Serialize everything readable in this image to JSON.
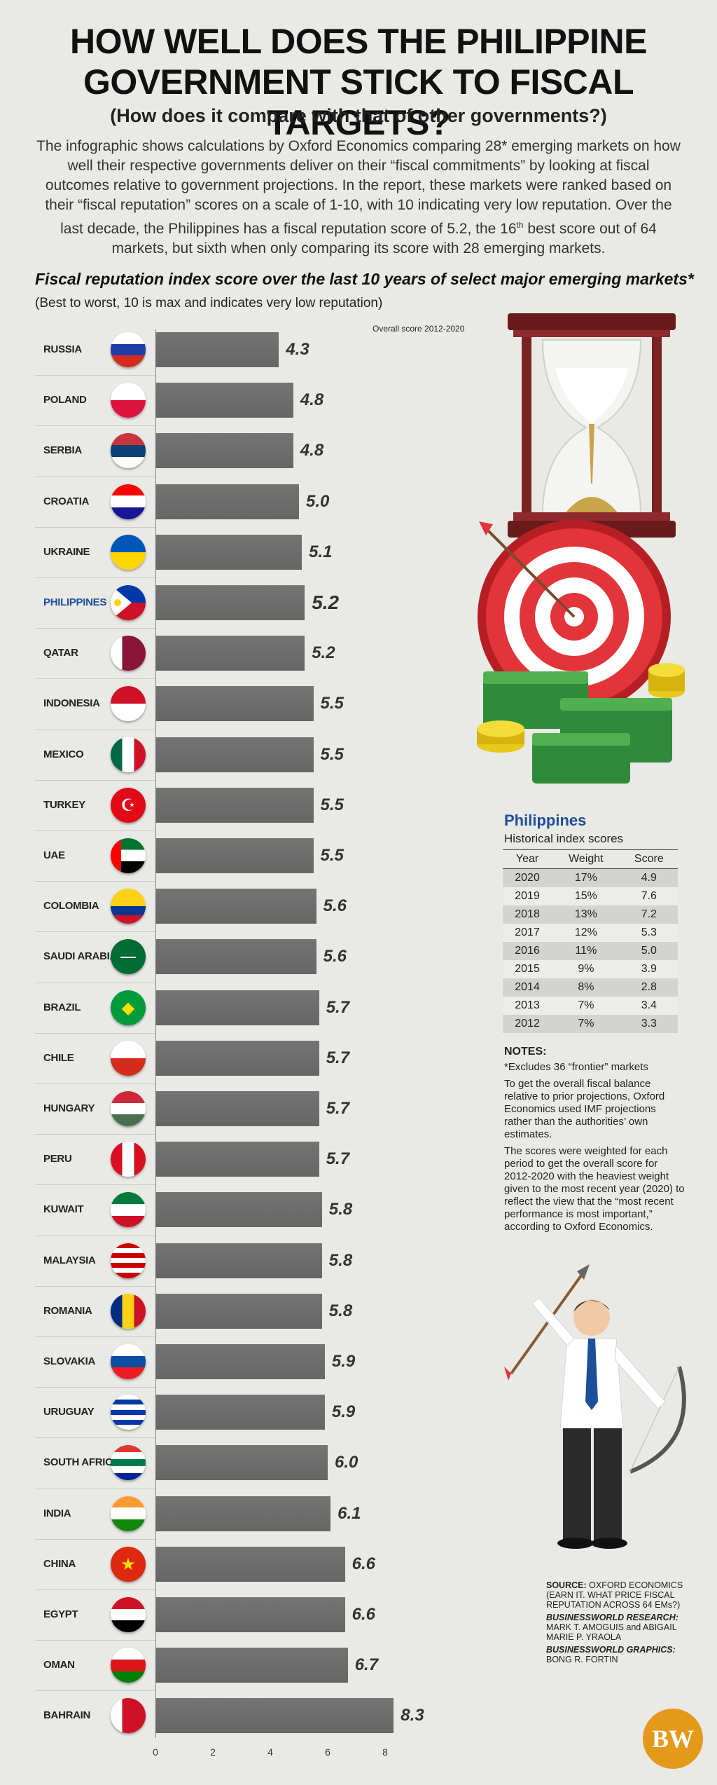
{
  "title_line1": "HOW WELL DOES THE PHILIPPINE",
  "title_line2": "GOVERNMENT STICK TO FISCAL TARGETS?",
  "subtitle": "(How does it compare with that of other governments?)",
  "intro_p1": "The infographic shows calculations by Oxford Economics comparing 28* emerging markets on how well their respective governments deliver on their “fiscal commitments” by looking at fiscal outcomes relative to government projections. In the report, these markets were ranked based on their “fiscal reputation” scores on a scale of 1-10, with 10 indicating very low reputation.",
  "intro_p2a": "Over the last decade, the Philippines has a fiscal reputation score of 5.2, the 16",
  "intro_sup": "th",
  "intro_p2b": " best score out of 64 markets, but sixth when only comparing its score with 28 emerging markets.",
  "chart_data": {
    "type": "bar",
    "orientation": "horizontal",
    "title": "Fiscal reputation index score over the last 10 years of select major emerging markets*",
    "subtitle": "(Best to worst, 10 is max and indicates very low reputation)",
    "value_header": "Overall score 2012-2020",
    "highlight": "PHILIPPINES",
    "categories": [
      "RUSSIA",
      "POLAND",
      "SERBIA",
      "CROATIA",
      "UKRAINE",
      "PHILIPPINES",
      "QATAR",
      "INDONESIA",
      "MEXICO",
      "TURKEY",
      "UAE",
      "COLOMBIA",
      "SAUDI ARABIA",
      "BRAZIL",
      "CHILE",
      "HUNGARY",
      "PERU",
      "KUWAIT",
      "MALAYSIA",
      "ROMANIA",
      "SLOVAKIA",
      "URUGUAY",
      "SOUTH AFRICA",
      "INDIA",
      "CHINA",
      "EGYPT",
      "OMAN",
      "BAHRAIN"
    ],
    "values": [
      4.3,
      4.8,
      4.8,
      5.0,
      5.1,
      5.2,
      5.2,
      5.5,
      5.5,
      5.5,
      5.5,
      5.6,
      5.6,
      5.7,
      5.7,
      5.7,
      5.7,
      5.8,
      5.8,
      5.8,
      5.9,
      5.9,
      6.0,
      6.1,
      6.6,
      6.6,
      6.7,
      8.3
    ],
    "value_labels": [
      "4.3",
      "4.8",
      "4.8",
      "5.0",
      "5.1",
      "5.2",
      "5.2",
      "5.5",
      "5.5",
      "5.5",
      "5.5",
      "5.6",
      "5.6",
      "5.7",
      "5.7",
      "5.7",
      "5.7",
      "5.8",
      "5.8",
      "5.8",
      "5.9",
      "5.9",
      "6.0",
      "6.1",
      "6.6",
      "6.6",
      "6.7",
      "8.3"
    ],
    "xlim": [
      0,
      8.3
    ],
    "xticks": [
      "0",
      "2",
      "4",
      "6",
      "8"
    ],
    "bar_color": "#747474",
    "grid": false
  },
  "flags": [
    {
      "type": "h",
      "colors": [
        "#ffffff",
        "#1c3ea6",
        "#d52b1e"
      ]
    },
    {
      "type": "h",
      "colors": [
        "#ffffff",
        "#dc143c"
      ]
    },
    {
      "type": "h",
      "colors": [
        "#c6363c",
        "#0c4076",
        "#ffffff"
      ]
    },
    {
      "type": "h",
      "colors": [
        "#ff0000",
        "#ffffff",
        "#171796"
      ]
    },
    {
      "type": "h",
      "colors": [
        "#0057b7",
        "#ffd700"
      ]
    },
    {
      "type": "ph"
    },
    {
      "type": "v",
      "colors": [
        "#ffffff",
        "#8a1538",
        "#8a1538"
      ]
    },
    {
      "type": "h",
      "colors": [
        "#ce1126",
        "#ffffff"
      ]
    },
    {
      "type": "v",
      "colors": [
        "#006847",
        "#ffffff",
        "#ce1126"
      ]
    },
    {
      "type": "solid",
      "colors": [
        "#e30a17"
      ],
      "glyph": "☪",
      "glyph_color": "#ffffff"
    },
    {
      "type": "uae"
    },
    {
      "type": "hw",
      "colors": [
        "#fcd116",
        "#fcd116",
        "#003893",
        "#ce1126"
      ]
    },
    {
      "type": "solid",
      "colors": [
        "#006c35"
      ],
      "glyph": "—",
      "glyph_color": "#ffffff"
    },
    {
      "type": "solid",
      "colors": [
        "#009c3b"
      ],
      "glyph": "◆",
      "glyph_color": "#ffdf00"
    },
    {
      "type": "h",
      "colors": [
        "#ffffff",
        "#d52b1e"
      ]
    },
    {
      "type": "h",
      "colors": [
        "#ce2939",
        "#ffffff",
        "#477050"
      ]
    },
    {
      "type": "v",
      "colors": [
        "#d91023",
        "#ffffff",
        "#d91023"
      ]
    },
    {
      "type": "h",
      "colors": [
        "#007a3d",
        "#ffffff",
        "#ce1126"
      ]
    },
    {
      "type": "h",
      "colors": [
        "#cc0001",
        "#ffffff",
        "#cc0001",
        "#ffffff",
        "#cc0001",
        "#ffffff",
        "#cc0001"
      ]
    },
    {
      "type": "v",
      "colors": [
        "#002b7f",
        "#fcd116",
        "#ce1126"
      ]
    },
    {
      "type": "h",
      "colors": [
        "#ffffff",
        "#0b4ea2",
        "#ee1c25"
      ]
    },
    {
      "type": "h",
      "colors": [
        "#ffffff",
        "#0038a8",
        "#ffffff",
        "#0038a8",
        "#ffffff",
        "#0038a8",
        "#ffffff"
      ]
    },
    {
      "type": "h",
      "colors": [
        "#de3831",
        "#ffffff",
        "#007a4d",
        "#ffffff",
        "#002395"
      ]
    },
    {
      "type": "h",
      "colors": [
        "#ff9933",
        "#ffffff",
        "#138808"
      ]
    },
    {
      "type": "solid",
      "colors": [
        "#de2910"
      ],
      "glyph": "★",
      "glyph_color": "#ffde00"
    },
    {
      "type": "h",
      "colors": [
        "#ce1126",
        "#ffffff",
        "#000000"
      ]
    },
    {
      "type": "h",
      "colors": [
        "#ffffff",
        "#db161b",
        "#008000"
      ]
    },
    {
      "type": "v",
      "colors": [
        "#ffffff",
        "#ce1126",
        "#ce1126"
      ]
    }
  ],
  "philippines_box": {
    "title": "Philippines",
    "subtitle": "Historical index scores",
    "headers": [
      "Year",
      "Weight",
      "Score"
    ],
    "rows": [
      [
        "2020",
        "17%",
        "4.9"
      ],
      [
        "2019",
        "15%",
        "7.6"
      ],
      [
        "2018",
        "13%",
        "7.2"
      ],
      [
        "2017",
        "12%",
        "5.3"
      ],
      [
        "2016",
        "11%",
        "5.0"
      ],
      [
        "2015",
        "9%",
        "3.9"
      ],
      [
        "2014",
        "8%",
        "2.8"
      ],
      [
        "2013",
        "7%",
        "3.4"
      ],
      [
        "2012",
        "7%",
        "3.3"
      ]
    ]
  },
  "notes": {
    "heading": "NOTES:",
    "n1": "*Excludes 36 “frontier” markets",
    "n2": "To get the overall fiscal balance relative to prior projections, Oxford Economics used IMF projections rather than the authorities’ own estimates.",
    "n3": "The scores were weighted for each period to get the overall score for 2012-2020 with the heaviest weight given to the most recent year (2020) to reflect the view that the “most recent performance is most important,” according to Oxford Economics."
  },
  "source": {
    "label": "SOURCE:",
    "text": " OXFORD ECONOMICS (EARN IT. WHAT PRICE FISCAL REPUTATION ACROSS 64 EMs?)",
    "research_label": "BUSINESSWORLD RESEARCH:",
    "research": "MARK T. AMOGUIS and ABIGAIL MARIE P. YRAOLA",
    "graphics_label": "BUSINESSWORLD GRAPHICS:",
    "graphics": "BONG R. FORTIN"
  },
  "logo": "BW"
}
